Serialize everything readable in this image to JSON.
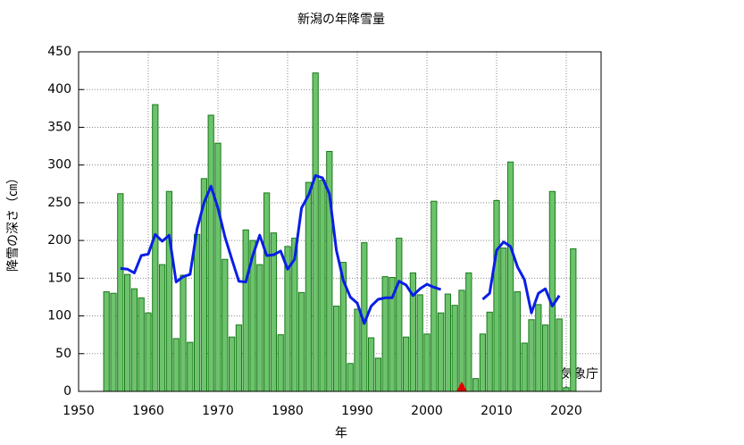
{
  "chart_data": {
    "type": "bar",
    "title": "新潟の年降雪量",
    "xlabel": "年",
    "ylabel": "降雪の深さ（㎝）",
    "annotation": "気象庁",
    "xlim": [
      1950,
      2025
    ],
    "ylim": [
      0,
      450
    ],
    "xticks": [
      1950,
      1960,
      1970,
      1980,
      1990,
      2000,
      2010,
      2020
    ],
    "yticks": [
      0,
      50,
      100,
      150,
      200,
      250,
      300,
      350,
      400,
      450
    ],
    "grid": true,
    "series": [
      {
        "type": "bar",
        "color": "#6cc36c",
        "edgecolor": "#1a7a1a",
        "x": [
          1954,
          1955,
          1956,
          1957,
          1958,
          1959,
          1960,
          1961,
          1962,
          1963,
          1964,
          1965,
          1966,
          1967,
          1968,
          1969,
          1970,
          1971,
          1972,
          1973,
          1974,
          1975,
          1976,
          1977,
          1978,
          1979,
          1980,
          1981,
          1982,
          1983,
          1984,
          1985,
          1986,
          1987,
          1988,
          1989,
          1990,
          1991,
          1992,
          1993,
          1994,
          1995,
          1996,
          1997,
          1998,
          1999,
          2000,
          2001,
          2002,
          2003,
          2004,
          2005,
          2006,
          2007,
          2008,
          2009,
          2010,
          2011,
          2012,
          2013,
          2014,
          2015,
          2016,
          2017,
          2018,
          2019,
          2020,
          2021
        ],
        "values": [
          132,
          130,
          262,
          155,
          136,
          124,
          104,
          380,
          168,
          265,
          70,
          154,
          65,
          208,
          282,
          366,
          329,
          175,
          72,
          88,
          214,
          200,
          168,
          263,
          210,
          75,
          192,
          203,
          131,
          277,
          422,
          280,
          318,
          113,
          171,
          37,
          109,
          197,
          71,
          44,
          152,
          151,
          203,
          72,
          157,
          128,
          76,
          252,
          104,
          129,
          114,
          134,
          157,
          17,
          76,
          105,
          253,
          190,
          304,
          132,
          64,
          95,
          115,
          88,
          265,
          96,
          5,
          189
        ]
      },
      {
        "type": "line",
        "color": "#0a1ee6",
        "x": [
          1956,
          1957,
          1958,
          1959,
          1960,
          1961,
          1962,
          1963,
          1964,
          1965,
          1966,
          1967,
          1968,
          1969,
          1970,
          1971,
          1972,
          1973,
          1974,
          1975,
          1976,
          1977,
          1978,
          1979,
          1980,
          1981,
          1982,
          1983,
          1984,
          1985,
          1986,
          1987,
          1988,
          1989,
          1990,
          1991,
          1992,
          1993,
          1994,
          1995,
          1996,
          1997,
          1998,
          1999,
          2000,
          2001,
          2002,
          2003,
          2004,
          2005,
          2006,
          2007,
          2008,
          2009,
          2010,
          2011,
          2012,
          2013,
          2014,
          2015,
          2016,
          2017,
          2018,
          2019
        ],
        "values": [
          163,
          162,
          157,
          180,
          182,
          208,
          199,
          207,
          145,
          152,
          155,
          215,
          250,
          272,
          243,
          205,
          175,
          146,
          145,
          180,
          207,
          180,
          181,
          186,
          162,
          175,
          243,
          260,
          286,
          283,
          262,
          187,
          147,
          125,
          117,
          90,
          113,
          122,
          124,
          124,
          146,
          141,
          127,
          136,
          142,
          138,
          135,
          null,
          null,
          null,
          null,
          null,
          122,
          130,
          187,
          198,
          192,
          165,
          148,
          104,
          130,
          136,
          113,
          127
        ]
      }
    ],
    "marker": {
      "x": 2005,
      "y": 0,
      "color": "#e00000"
    }
  }
}
